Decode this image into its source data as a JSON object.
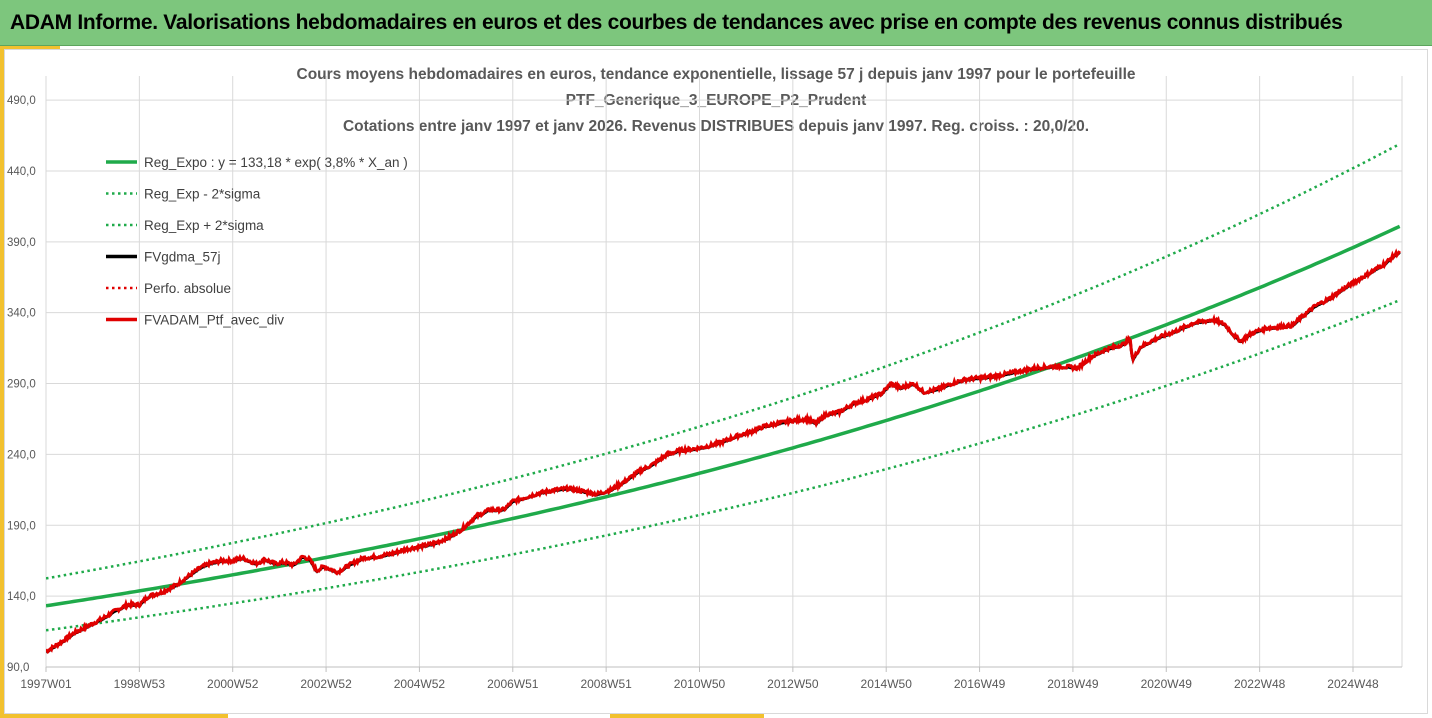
{
  "banner": {
    "title": "ADAM Informe. Valorisations hebdomadaires en euros et des courbes de tendances avec prise en compte des revenus connus distribués"
  },
  "colors": {
    "banner_bg": "#7dc67d",
    "accent": "#f2c12e",
    "trend_green": "#1faa4a",
    "perf_black": "#000000",
    "perf_red": "#e00000",
    "grid": "#d9d9d9",
    "tick_text": "#595959"
  },
  "chart_data": {
    "type": "line",
    "title_lines": [
      "Cours moyens hebdomadaires  en euros, tendance exponentielle, lissage 57 j depuis janv 1997 pour le portefeuille",
      "PTF_Generique_3_EUROPE_P2_Prudent",
      "Cotations entre janv 1997 et janv 2026. Revenus DISTRIBUES depuis janv 1997. Reg. croiss. : 20,0/20."
    ],
    "xlabel": "",
    "ylabel": "",
    "x_range": [
      1997.0,
      2026.05
    ],
    "ylim": [
      90,
      507
    ],
    "y_ticks": [
      "90,0",
      "140,0",
      "190,0",
      "240,0",
      "290,0",
      "340,0",
      "390,0",
      "440,0",
      "490,0"
    ],
    "x_ticks": [
      {
        "label": "1997W01",
        "year": 1997.0
      },
      {
        "label": "1998W53",
        "year": 1999.0
      },
      {
        "label": "2000W52",
        "year": 2001.0
      },
      {
        "label": "2002W52",
        "year": 2003.0
      },
      {
        "label": "2004W52",
        "year": 2005.0
      },
      {
        "label": "2006W51",
        "year": 2007.0
      },
      {
        "label": "2008W51",
        "year": 2009.0
      },
      {
        "label": "2010W50",
        "year": 2011.0
      },
      {
        "label": "2012W50",
        "year": 2013.0
      },
      {
        "label": "2014W50",
        "year": 2015.0
      },
      {
        "label": "2016W49",
        "year": 2017.0
      },
      {
        "label": "2018W49",
        "year": 2019.0
      },
      {
        "label": "2020W49",
        "year": 2021.0
      },
      {
        "label": "2022W48",
        "year": 2023.0
      },
      {
        "label": "2024W48",
        "year": 2025.0
      }
    ],
    "grid": true,
    "legend_position": "top-left",
    "legend": [
      {
        "label": "Reg_Expo : y = 133,18 * exp( 3,8% *  X_an )",
        "style": "solid",
        "color": "#1faa4a"
      },
      {
        "label": "Reg_Exp - 2*sigma",
        "style": "dotted",
        "color": "#1faa4a"
      },
      {
        "label": "Reg_Exp + 2*sigma",
        "style": "dotted",
        "color": "#1faa4a"
      },
      {
        "label": "FVgdma_57j",
        "style": "solid",
        "color": "#000000"
      },
      {
        "label": "Perfo. absolue",
        "style": "dotted",
        "color": "#e00000"
      },
      {
        "label": "FVADAM_Ptf_avec_div",
        "style": "solid",
        "color": "#e00000"
      }
    ],
    "regression": {
      "a": 133.18,
      "rate": 0.038,
      "minus_2sigma_factor": 0.87,
      "plus_2sigma_factor": 1.145
    },
    "series": [
      {
        "name": "FVADAM_Ptf_avec_div",
        "points": [
          [
            1997.0,
            101
          ],
          [
            1997.3,
            107
          ],
          [
            1997.6,
            114
          ],
          [
            1997.9,
            119
          ],
          [
            1998.2,
            124
          ],
          [
            1998.5,
            130
          ],
          [
            1998.75,
            134
          ],
          [
            1999.0,
            134
          ],
          [
            1999.2,
            140
          ],
          [
            1999.5,
            143
          ],
          [
            1999.8,
            148
          ],
          [
            2000.0,
            153
          ],
          [
            2000.3,
            160
          ],
          [
            2000.5,
            163
          ],
          [
            2000.75,
            165
          ],
          [
            2001.0,
            165
          ],
          [
            2001.2,
            167
          ],
          [
            2001.5,
            163
          ],
          [
            2001.7,
            166
          ],
          [
            2001.9,
            163
          ],
          [
            2002.1,
            164
          ],
          [
            2002.3,
            162
          ],
          [
            2002.5,
            168
          ],
          [
            2002.65,
            166
          ],
          [
            2002.8,
            158
          ],
          [
            2002.95,
            161
          ],
          [
            2003.1,
            159
          ],
          [
            2003.25,
            157
          ],
          [
            2003.5,
            162
          ],
          [
            2003.8,
            167
          ],
          [
            2004.1,
            168
          ],
          [
            2004.4,
            170
          ],
          [
            2004.7,
            173
          ],
          [
            2005.0,
            175
          ],
          [
            2005.3,
            177
          ],
          [
            2005.6,
            181
          ],
          [
            2005.9,
            187
          ],
          [
            2006.2,
            196
          ],
          [
            2006.5,
            201
          ],
          [
            2006.8,
            201
          ],
          [
            2007.0,
            207
          ],
          [
            2007.3,
            210
          ],
          [
            2007.6,
            213
          ],
          [
            2007.9,
            215
          ],
          [
            2008.2,
            216
          ],
          [
            2008.5,
            214
          ],
          [
            2008.8,
            212
          ],
          [
            2009.1,
            215
          ],
          [
            2009.4,
            221
          ],
          [
            2009.7,
            228
          ],
          [
            2010.0,
            233
          ],
          [
            2010.3,
            240
          ],
          [
            2010.6,
            243
          ],
          [
            2010.9,
            244
          ],
          [
            2011.2,
            246
          ],
          [
            2011.5,
            249
          ],
          [
            2011.8,
            253
          ],
          [
            2012.1,
            256
          ],
          [
            2012.4,
            260
          ],
          [
            2012.7,
            262
          ],
          [
            2013.0,
            264
          ],
          [
            2013.3,
            265
          ],
          [
            2013.5,
            262
          ],
          [
            2013.7,
            268
          ],
          [
            2014.0,
            270
          ],
          [
            2014.3,
            276
          ],
          [
            2014.6,
            279
          ],
          [
            2014.9,
            283
          ],
          [
            2015.1,
            290
          ],
          [
            2015.3,
            287
          ],
          [
            2015.6,
            290
          ],
          [
            2015.8,
            284
          ],
          [
            2016.1,
            286
          ],
          [
            2016.4,
            290
          ],
          [
            2016.7,
            293
          ],
          [
            2017.0,
            294
          ],
          [
            2017.3,
            295
          ],
          [
            2017.6,
            297
          ],
          [
            2017.9,
            299
          ],
          [
            2018.2,
            301
          ],
          [
            2018.5,
            302
          ],
          [
            2018.8,
            302
          ],
          [
            2019.1,
            301
          ],
          [
            2019.4,
            309
          ],
          [
            2019.7,
            314
          ],
          [
            2019.9,
            316
          ],
          [
            2020.1,
            318
          ],
          [
            2020.22,
            322
          ],
          [
            2020.28,
            307
          ],
          [
            2020.45,
            316
          ],
          [
            2020.8,
            322
          ],
          [
            2021.2,
            327
          ],
          [
            2021.6,
            333
          ],
          [
            2022.0,
            335
          ],
          [
            2022.25,
            332
          ],
          [
            2022.45,
            324
          ],
          [
            2022.6,
            320
          ],
          [
            2022.8,
            325
          ],
          [
            2023.1,
            329
          ],
          [
            2023.4,
            330
          ],
          [
            2023.7,
            331
          ],
          [
            2023.9,
            337
          ],
          [
            2024.2,
            345
          ],
          [
            2024.5,
            350
          ],
          [
            2024.8,
            357
          ],
          [
            2025.1,
            363
          ],
          [
            2025.4,
            369
          ],
          [
            2025.7,
            375
          ],
          [
            2025.9,
            381
          ],
          [
            2026.0,
            383
          ]
        ]
      }
    ]
  }
}
